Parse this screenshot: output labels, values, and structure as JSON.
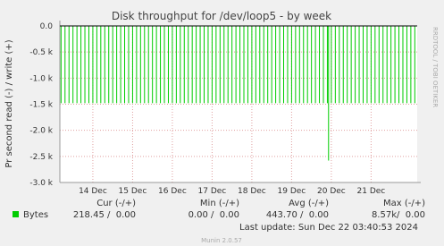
{
  "chart_data": {
    "type": "spike",
    "title": "Disk throughput for /dev/loop5 - by week",
    "y_label": "Pr second read (-) / write (+)",
    "side_text": "RRDTOOL / TOBI OETIKER",
    "xlim": [
      13.17,
      22.16
    ],
    "xticks": [
      {
        "value": 14,
        "label": "14 Dec"
      },
      {
        "value": 15,
        "label": "15 Dec"
      },
      {
        "value": 16,
        "label": "16 Dec"
      },
      {
        "value": 17,
        "label": "17 Dec"
      },
      {
        "value": 18,
        "label": "18 Dec"
      },
      {
        "value": 19,
        "label": "19 Dec"
      },
      {
        "value": 20,
        "label": "20 Dec"
      },
      {
        "value": 21,
        "label": "21 Dec"
      }
    ],
    "ylim": [
      -3000,
      0
    ],
    "yticks": [
      {
        "value": 0,
        "label": "0.0"
      },
      {
        "value": -500,
        "label": "-0.5 k"
      },
      {
        "value": -1000,
        "label": "-1.0 k"
      },
      {
        "value": -1500,
        "label": "-1.5 k"
      },
      {
        "value": -2000,
        "label": "-2.0 k"
      },
      {
        "value": -2500,
        "label": "-2.5 k"
      },
      {
        "value": -3000,
        "label": "-3.0 k"
      }
    ],
    "grid": true,
    "x": [
      13.2,
      13.3,
      13.4,
      13.5,
      13.6,
      13.7,
      13.8,
      13.9,
      14.0,
      14.1,
      14.2,
      14.3,
      14.4,
      14.5,
      14.6,
      14.7,
      14.8,
      14.9,
      15.0,
      15.1,
      15.2,
      15.3,
      15.4,
      15.5,
      15.6,
      15.7,
      15.8,
      15.9,
      16.0,
      16.1,
      16.2,
      16.3,
      16.4,
      16.5,
      16.6,
      16.7,
      16.8,
      16.9,
      17.0,
      17.1,
      17.2,
      17.3,
      17.4,
      17.5,
      17.6,
      17.7,
      17.8,
      17.9,
      18.0,
      18.1,
      18.2,
      18.3,
      18.4,
      18.5,
      18.6,
      18.7,
      18.8,
      18.9,
      19.0,
      19.1,
      19.2,
      19.3,
      19.4,
      19.5,
      19.6,
      19.7,
      19.8,
      19.9,
      19.93,
      20.0,
      20.1,
      20.2,
      20.3,
      20.4,
      20.5,
      20.6,
      20.7,
      20.8,
      20.9,
      21.0,
      21.1,
      21.2,
      21.3,
      21.4,
      21.5,
      21.6,
      21.7,
      21.8,
      21.9,
      22.0,
      22.1
    ],
    "series": [
      {
        "name": "Bytes",
        "color": "#00cc00",
        "values": [
          -1480,
          -1480,
          -1480,
          -1480,
          -1480,
          -1480,
          -1480,
          -1480,
          -1480,
          -1480,
          -1480,
          -1480,
          -1480,
          -1480,
          -1480,
          -1480,
          -1480,
          -1480,
          -1480,
          -1480,
          -1480,
          -1480,
          -1480,
          -1480,
          -1480,
          -1480,
          -1480,
          -1480,
          -1480,
          -1480,
          -1480,
          -1480,
          -1480,
          -1480,
          -1480,
          -1480,
          -1480,
          -1480,
          -1480,
          -1480,
          -1480,
          -1480,
          -1480,
          -1480,
          -1480,
          -1480,
          -1480,
          -1480,
          -1480,
          -1480,
          -1480,
          -1480,
          -1480,
          -1480,
          -1480,
          -1480,
          -1480,
          -1480,
          -1480,
          -1480,
          -1480,
          -1480,
          -1480,
          -1480,
          -1480,
          -1480,
          -1480,
          -1480,
          -2580,
          -1480,
          -1480,
          -1480,
          -1480,
          -1480,
          -1480,
          -1480,
          -1480,
          -1480,
          -1480,
          -1480,
          -1480,
          -1480,
          -1480,
          -1480,
          -1480,
          -1480,
          -1480,
          -1480,
          -1480,
          -1480,
          -1480
        ]
      }
    ],
    "legend_table": {
      "headers": [
        "Cur (-/+)",
        "Min (-/+)",
        "Avg (-/+)",
        "Max (-/+)"
      ],
      "cells": [
        "218.45 /  0.00",
        "0.00 /  0.00",
        "443.70 /  0.00",
        "8.57k/  0.00"
      ]
    },
    "last_update": "Last update: Sun Dec 22 03:40:53 2024",
    "footer": "Munin 2.0.57"
  }
}
